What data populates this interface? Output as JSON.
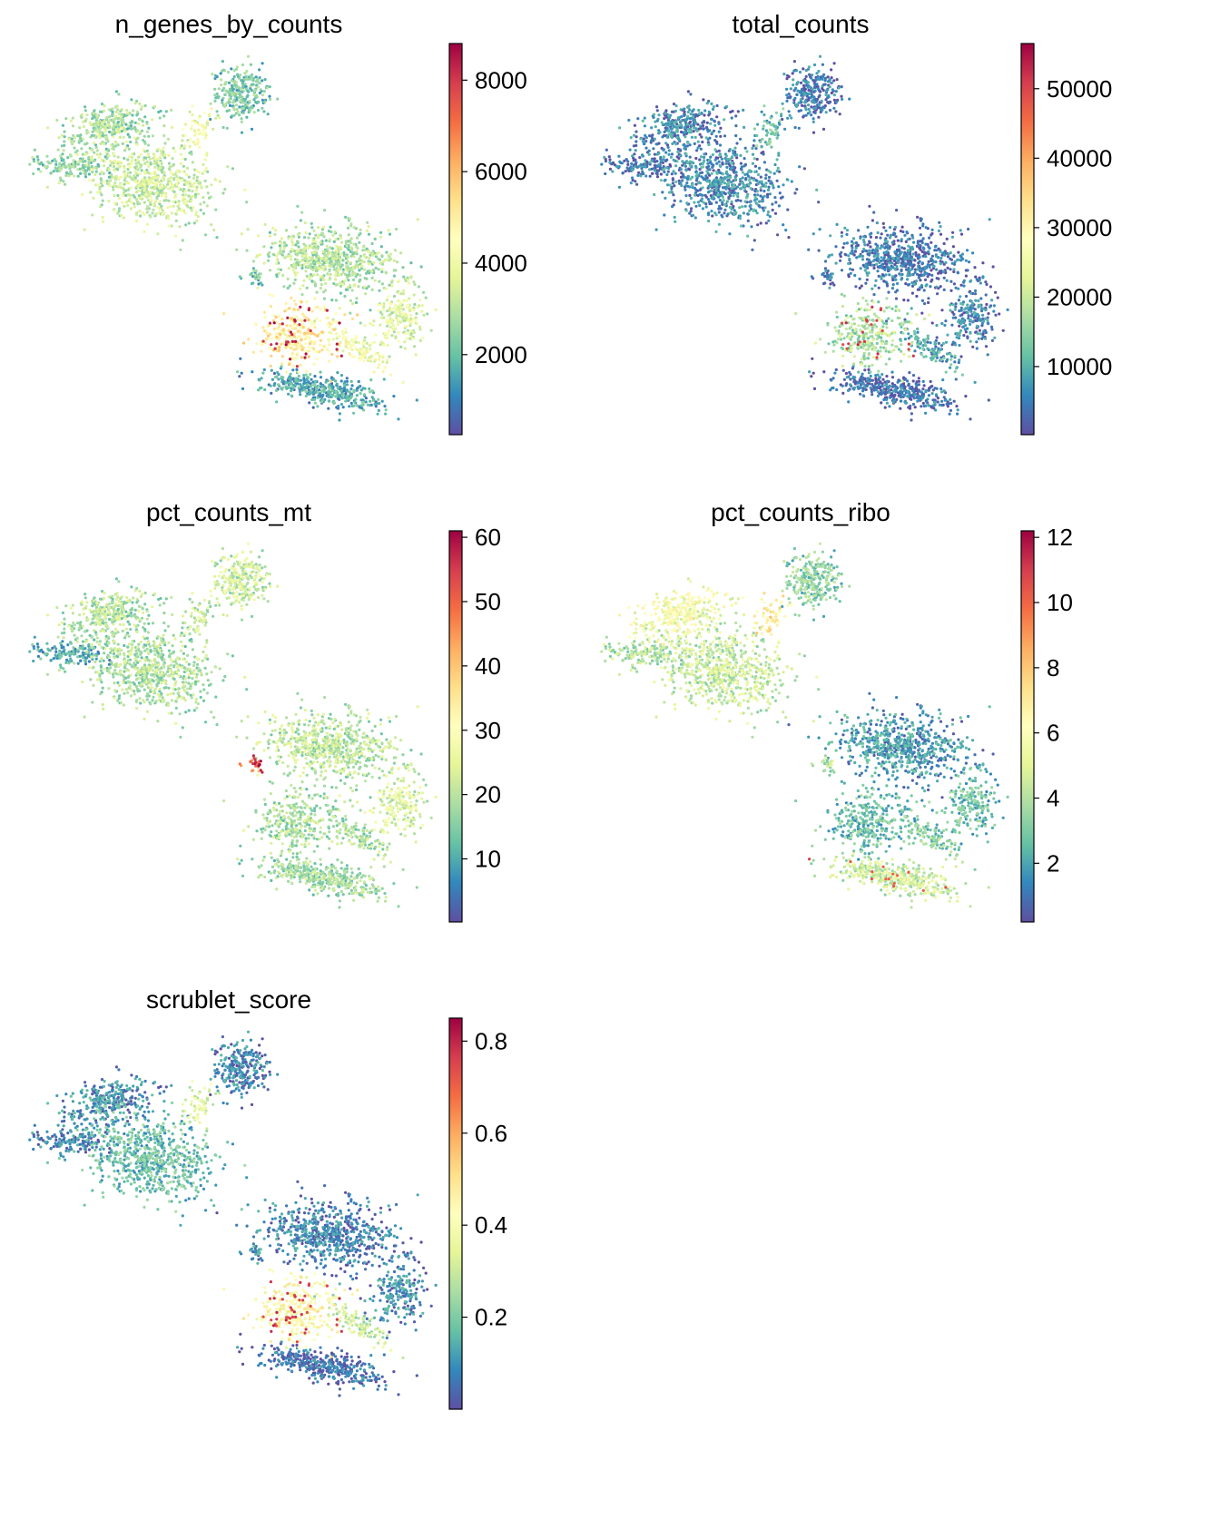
{
  "chart_data": [
    {
      "type": "scatter",
      "plot_kind": "umap-embedding",
      "title": "n_genes_by_counts",
      "colormap": "Spectral_r",
      "color_range": [
        250,
        8800
      ],
      "colorbar_ticks": [
        "2000",
        "4000",
        "6000",
        "8000"
      ],
      "colorbar_tick_values": [
        2000,
        4000,
        6000,
        8000
      ],
      "hotspots": [
        "lower-middle-cluster"
      ],
      "baseline": 0.28
    },
    {
      "type": "scatter",
      "plot_kind": "umap-embedding",
      "title": "total_counts",
      "colormap": "Spectral_r",
      "color_range": [
        200,
        56500
      ],
      "colorbar_ticks": [
        "10000",
        "20000",
        "30000",
        "40000",
        "50000"
      ],
      "colorbar_tick_values": [
        10000,
        20000,
        30000,
        40000,
        50000
      ],
      "hotspots": [
        "lower-middle-cluster"
      ],
      "baseline": 0.08
    },
    {
      "type": "scatter",
      "plot_kind": "umap-embedding",
      "title": "pct_counts_mt",
      "colormap": "Spectral_r",
      "color_range": [
        0.2,
        61
      ],
      "colorbar_ticks": [
        "10",
        "20",
        "30",
        "40",
        "50",
        "60"
      ],
      "colorbar_tick_values": [
        10,
        20,
        30,
        40,
        50,
        60
      ],
      "hotspots": [
        "left-tail-of-upper-right-cluster"
      ],
      "baseline": 0.33
    },
    {
      "type": "scatter",
      "plot_kind": "umap-embedding",
      "title": "pct_counts_ribo",
      "colormap": "Spectral_r",
      "color_range": [
        0.2,
        12.2
      ],
      "colorbar_ticks": [
        "2",
        "4",
        "6",
        "8",
        "10",
        "12"
      ],
      "colorbar_tick_values": [
        2,
        4,
        6,
        8,
        10,
        12
      ],
      "hotspots": [
        "upper-left-cluster",
        "bottom-cluster"
      ],
      "baseline": 0.2
    },
    {
      "type": "scatter",
      "plot_kind": "umap-embedding",
      "title": "scrublet_score",
      "colormap": "Spectral_r",
      "color_range": [
        0.0,
        0.85
      ],
      "colorbar_ticks": [
        "0.2",
        "0.4",
        "0.6",
        "0.8"
      ],
      "colorbar_tick_values": [
        0.2,
        0.4,
        0.6,
        0.8
      ],
      "hotspots": [
        "lower-middle-cluster"
      ],
      "baseline": 0.12
    }
  ]
}
